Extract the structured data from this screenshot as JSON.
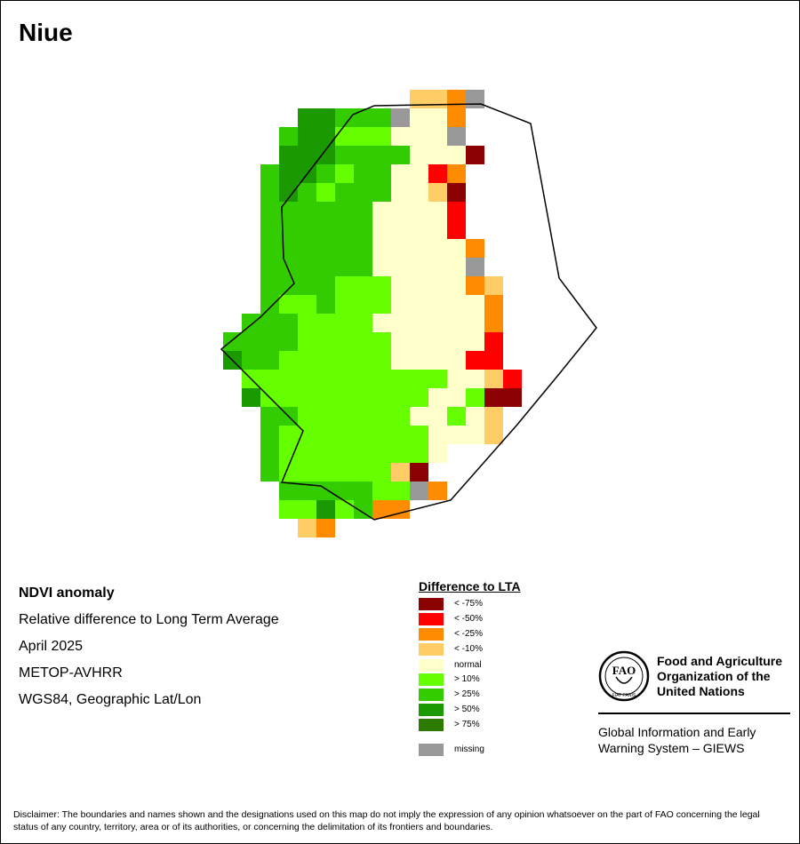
{
  "title": "Niue",
  "info": {
    "product": "NDVI anomaly",
    "description": "Relative difference to Long Term Average",
    "date": "April 2025",
    "sensor": "METOP-AVHRR",
    "projection": "WGS84, Geographic Lat/Lon"
  },
  "legend": {
    "title": "Difference to LTA",
    "items": [
      {
        "key": "a",
        "label": "< -75%",
        "color": "#8b0000"
      },
      {
        "key": "b",
        "label": "< -50%",
        "color": "#ff0000"
      },
      {
        "key": "c",
        "label": "< -25%",
        "color": "#ff8c00"
      },
      {
        "key": "d",
        "label": "< -10%",
        "color": "#ffcc66"
      },
      {
        "key": "n",
        "label": "normal",
        "color": "#ffffcc"
      },
      {
        "key": "e",
        "label": "> 10%",
        "color": "#66ff00"
      },
      {
        "key": "f",
        "label": "> 25%",
        "color": "#33cc00"
      },
      {
        "key": "g",
        "label": "> 50%",
        "color": "#1a9900"
      },
      {
        "key": "h",
        "label": "> 75%",
        "color": "#2d7a00"
      },
      {
        "key": "m",
        "label": "missing",
        "color": "#999999"
      }
    ]
  },
  "organization": {
    "name": "Food and Agriculture Organization of the United Nations",
    "name_lines": [
      "Food and Agriculture",
      "Organization of the",
      "United Nations"
    ],
    "logo_text": [
      "FAO",
      "FIAT PANIS"
    ],
    "system_lines": [
      "Global Information and Early",
      "Warning System – GIEWS"
    ]
  },
  "disclaimer": "Disclaimer: The boundaries and names shown and the designations used on this map do not imply the expression of any opinion whatsoever on the part of FAO concerning the legal status of any country, territory, area or of its authorities, or concerning the delimitation of its frontiers and boundaries.",
  "map_grid": {
    "rows": [
      "..........ddcm....",
      "....ggfffmnnc.....",
      "...fggeeennnm.....",
      "...gggffffnnna.....",
      "..fggfeffnnbc......",
      "..fgfefffnnda......",
      "..ffffffnnnnb......",
      "..ffffffnnnnb......",
      "..ffffffnnnnnc.....",
      "..ffffffnnnnnm.....",
      "..ffffeeennnncd....",
      "..feefeeennnnnc....",
      ".fffeeeennnnnnc....",
      "ffffeeeeennnnnb....",
      "gffeeeeeennnnbb....",
      ".eeeeeeeeeeenndb...",
      ".geeeeeeeeenneaa...",
      "..ffeeeeeennend....",
      "..feeeeeeeennnd....",
      "..feeeeeeeen.......",
      "..feeeeeeda........",
      "...fffffeemc.......",
      "...eegefcc.........",
      "....dc.............",
      "..................."
    ],
    "row_offsets": [
      10,
      8,
      6,
      6,
      5,
      5,
      5,
      5,
      5,
      5,
      5,
      5,
      4,
      3,
      2,
      1,
      1,
      2,
      2,
      2,
      2,
      2,
      3,
      4,
      0
    ]
  }
}
